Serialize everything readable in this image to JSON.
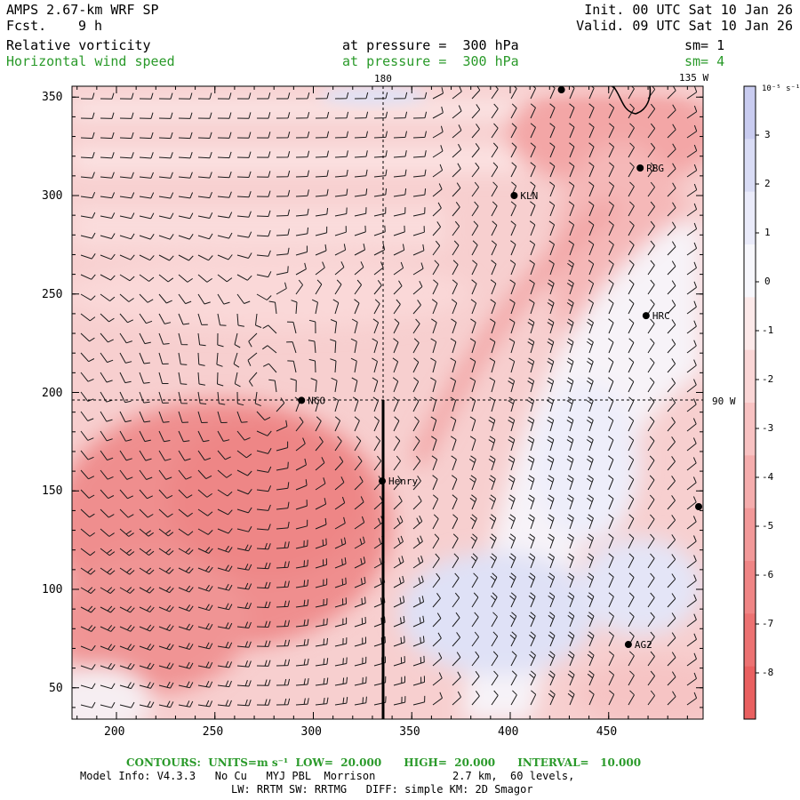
{
  "header": {
    "model_title": "AMPS 2.67-km WRF SP",
    "fcst_label": "Fcst.",
    "fcst_value": "9 h",
    "init": "Init. 00 UTC Sat 10 Jan 26",
    "valid": "Valid. 09 UTC Sat 10 Jan 26",
    "field1_name": "Relative vorticity",
    "field1_level": "at pressure =  300 hPa",
    "field1_smooth": "sm= 1",
    "field2_name": "Horizontal wind speed",
    "field2_level": "at pressure =  300 hPa",
    "field2_smooth": "sm= 4"
  },
  "map": {
    "x_ticks": [
      "200",
      "250",
      "300",
      "350",
      "400",
      "450"
    ],
    "y_ticks": [
      "50",
      "100",
      "150",
      "200",
      "250",
      "300",
      "350"
    ],
    "meridian_top_label": "180",
    "meridian_right_label": "135 W",
    "parallel_right_label": "90 W",
    "stations": [
      {
        "id": "RBG"
      },
      {
        "id": "KLN"
      },
      {
        "id": "HRC"
      },
      {
        "id": "NCO"
      },
      {
        "id": "Henry"
      },
      {
        "id": "AG2"
      }
    ]
  },
  "colorbar": {
    "unit_label": "10⁻⁵ s⁻¹",
    "ticks": [
      "3",
      "2",
      "1",
      "0",
      "-1",
      "-2",
      "-3",
      "-4",
      "-5",
      "-6",
      "-7",
      "-8"
    ],
    "colors": [
      "#c9ccf0",
      "#d9dcf5",
      "#eaebfa",
      "#f7f7fc",
      "#fce9e9",
      "#fad6d6",
      "#f8c2c2",
      "#f5adad",
      "#f29999",
      "#ef8585",
      "#ec7272",
      "#e96060"
    ]
  },
  "footer": {
    "contours": "CONTOURS:  UNITS=m s⁻¹  LOW=  20.000      HIGH=  20.000      INTERVAL=   10.000",
    "model_info": "Model Info: V4.3.3   No Cu   MYJ PBL  Morrison            2.7 km,  60 levels,",
    "physics": "LW: RRTM SW: RRTMG   DIFF: simple KM: 2D Smagor"
  }
}
